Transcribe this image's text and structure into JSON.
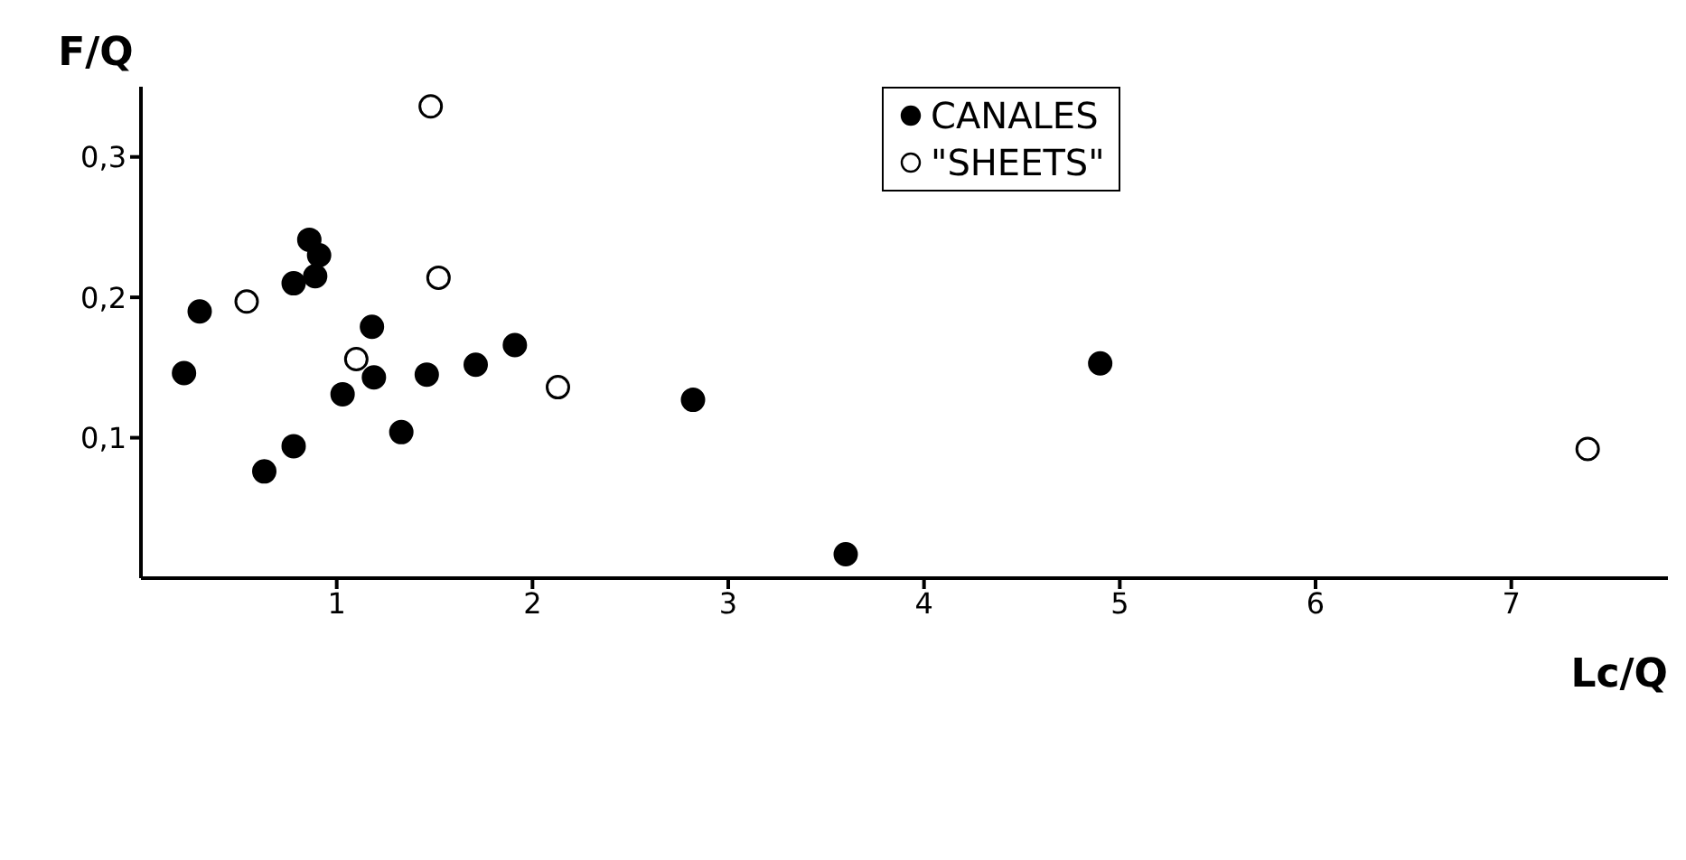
{
  "chart_data": {
    "type": "scatter",
    "xlabel": "Lc/Q",
    "ylabel": "F/Q",
    "xlim": [
      0,
      7.8
    ],
    "ylim": [
      0,
      0.35
    ],
    "xticks": [
      1,
      2,
      3,
      4,
      5,
      6,
      7
    ],
    "yticks": [
      {
        "value": 0.1,
        "label": "0,1"
      },
      {
        "value": 0.2,
        "label": "0,2"
      },
      {
        "value": 0.3,
        "label": "0,3"
      }
    ],
    "legend": "top right",
    "marker": "circle",
    "series": [
      {
        "name": "CANALES",
        "color": "#000000",
        "x": [
          0.22,
          0.3,
          0.86,
          0.91,
          0.78,
          0.89,
          1.18,
          1.03,
          1.19,
          1.46,
          1.71,
          1.91,
          1.33,
          0.78,
          0.63,
          2.82,
          4.9,
          3.6
        ],
        "values": [
          0.146,
          0.19,
          0.241,
          0.23,
          0.21,
          0.215,
          0.179,
          0.131,
          0.143,
          0.145,
          0.152,
          0.166,
          0.104,
          0.094,
          0.076,
          0.127,
          0.153,
          0.017
        ]
      },
      {
        "name": "\"SHEETS\"",
        "color": "#ffffff",
        "x": [
          1.48,
          1.52,
          0.54,
          1.1,
          2.13,
          7.39
        ],
        "values": [
          0.336,
          0.214,
          0.197,
          0.156,
          0.136,
          0.092
        ]
      }
    ]
  }
}
